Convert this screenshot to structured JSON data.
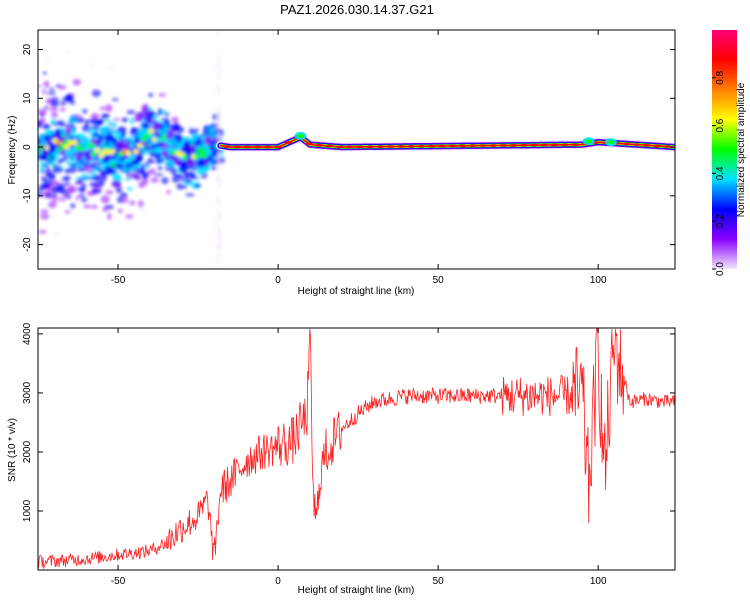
{
  "title": "PAZ1.2026.030.14.37.G21",
  "chart_data": [
    {
      "type": "heatmap",
      "xlabel": "Height of straight line (km)",
      "ylabel": "Frequency (Hz)",
      "xlim": [
        -75,
        124
      ],
      "ylim": [
        -25,
        24
      ],
      "xticks": [
        -50,
        0,
        50,
        100
      ],
      "yticks": [
        -20,
        -10,
        0,
        10,
        20
      ],
      "colorbar": {
        "label": "Normalized spectral amplitude",
        "range": [
          0,
          1
        ],
        "ticks": [
          "0.0",
          "0.2",
          "0.4",
          "0.6",
          "0.8"
        ],
        "colors": [
          "#f3e6ff",
          "#8a00ff",
          "#0000ff",
          "#00e0ff",
          "#00ff00",
          "#ffff00",
          "#ff7f00",
          "#ff0000",
          "#ff0077"
        ]
      },
      "ridge": [
        {
          "x": -70,
          "f": 1.0
        },
        {
          "x": -65,
          "f": 0.5
        },
        {
          "x": -60,
          "f": -0.5
        },
        {
          "x": -55,
          "f": -1.0
        },
        {
          "x": -50,
          "f": -1.5
        },
        {
          "x": -45,
          "f": -1.2
        },
        {
          "x": -40,
          "f": 3.0
        },
        {
          "x": -35,
          "f": 1.0
        },
        {
          "x": -30,
          "f": -2.0
        },
        {
          "x": -25,
          "f": -1.5
        },
        {
          "x": -20,
          "f": 0.5
        },
        {
          "x": -15,
          "f": 0.0
        },
        {
          "x": 0,
          "f": 0.0
        },
        {
          "x": 7,
          "f": 2.0
        },
        {
          "x": 10,
          "f": 0.5
        },
        {
          "x": 20,
          "f": 0.0
        },
        {
          "x": 95,
          "f": 0.5
        },
        {
          "x": 100,
          "f": 1.0
        },
        {
          "x": 124,
          "f": 0.0
        }
      ]
    },
    {
      "type": "line",
      "xlabel": "Height of straight line (km)",
      "ylabel": "SNR (10 * v/v)",
      "xlim": [
        -75,
        124
      ],
      "ylim": [
        0,
        4100
      ],
      "xticks": [
        -50,
        0,
        50,
        100
      ],
      "yticks": [
        1000,
        2000,
        3000,
        4000
      ],
      "series": [
        {
          "color": "#ff2020",
          "x": [
            -75,
            -70,
            -65,
            -60,
            -55,
            -50,
            -45,
            -40,
            -35,
            -30,
            -25,
            -22,
            -20,
            -18,
            -15,
            -12,
            -10,
            -5,
            0,
            5,
            7,
            9,
            10,
            11,
            12,
            13,
            15,
            20,
            25,
            30,
            35,
            40,
            50,
            60,
            70,
            80,
            90,
            95,
            97,
            100,
            102,
            105,
            110,
            115,
            120,
            124
          ],
          "y": [
            140,
            150,
            170,
            190,
            220,
            260,
            290,
            330,
            460,
            720,
            900,
            1200,
            180,
            1350,
            1500,
            1700,
            1850,
            2000,
            2100,
            2200,
            2450,
            2600,
            4000,
            1200,
            750,
            1600,
            2000,
            2400,
            2650,
            2850,
            2900,
            2950,
            2950,
            2950,
            2950,
            2950,
            2950,
            2950,
            1400,
            3700,
            1600,
            3850,
            2850,
            2900,
            2850,
            2850
          ]
        }
      ]
    }
  ]
}
